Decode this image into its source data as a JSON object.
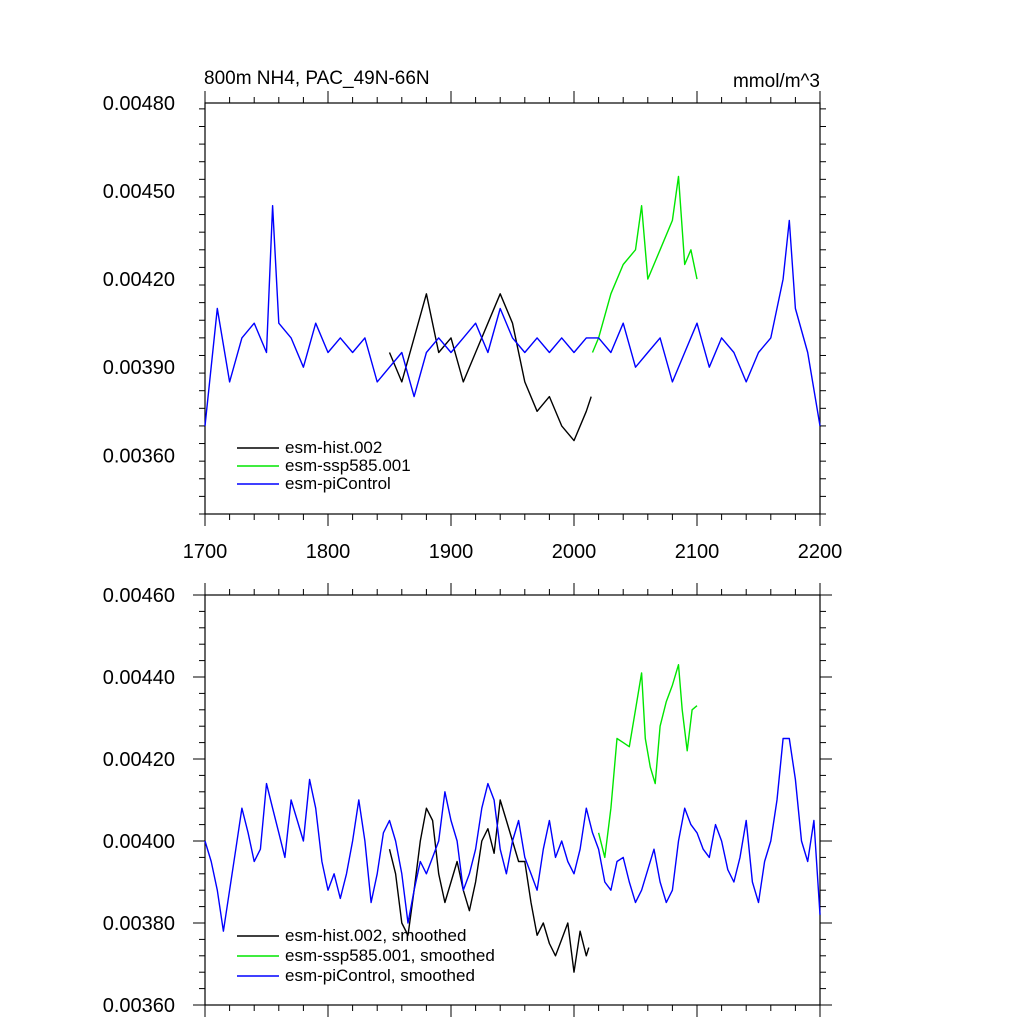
{
  "chart_data": [
    {
      "type": "line",
      "title": "800m NH4, PAC_49N-66N",
      "units": "mmol/m^3",
      "xlim": [
        1700,
        2200
      ],
      "ylim": [
        0.0034,
        0.0048
      ],
      "x_ticks": [
        "1700",
        "1800",
        "1900",
        "2000",
        "2100",
        "2200"
      ],
      "y_ticks": [
        "0.00360",
        "0.00390",
        "0.00420",
        "0.00450",
        "0.00480"
      ],
      "series": [
        {
          "name": "esm-hist.002",
          "color": "#000000",
          "x": [
            1850,
            1860,
            1870,
            1880,
            1890,
            1900,
            1910,
            1920,
            1930,
            1940,
            1950,
            1960,
            1970,
            1980,
            1990,
            2000,
            2010,
            2014
          ],
          "y": [
            0.00395,
            0.00385,
            0.004,
            0.00415,
            0.00395,
            0.004,
            0.00385,
            0.00395,
            0.00405,
            0.00415,
            0.00405,
            0.00385,
            0.00375,
            0.0038,
            0.0037,
            0.00365,
            0.00375,
            0.0038
          ]
        },
        {
          "name": "esm-ssp585.001",
          "color": "#00e600",
          "x": [
            2015,
            2020,
            2030,
            2040,
            2050,
            2055,
            2060,
            2070,
            2080,
            2085,
            2090,
            2095,
            2100
          ],
          "y": [
            0.00395,
            0.004,
            0.00415,
            0.00425,
            0.0043,
            0.00445,
            0.0042,
            0.0043,
            0.0044,
            0.00455,
            0.00425,
            0.0043,
            0.0042
          ]
        },
        {
          "name": "esm-piControl",
          "color": "#0000ff",
          "x": [
            1700,
            1710,
            1720,
            1730,
            1740,
            1750,
            1755,
            1760,
            1770,
            1780,
            1790,
            1800,
            1810,
            1820,
            1830,
            1840,
            1850,
            1860,
            1870,
            1880,
            1890,
            1900,
            1910,
            1920,
            1930,
            1940,
            1950,
            1960,
            1970,
            1980,
            1990,
            2000,
            2010,
            2020,
            2030,
            2040,
            2050,
            2060,
            2070,
            2080,
            2090,
            2100,
            2110,
            2120,
            2130,
            2140,
            2150,
            2160,
            2170,
            2175,
            2180,
            2190,
            2200
          ],
          "y": [
            0.0037,
            0.0041,
            0.00385,
            0.004,
            0.00405,
            0.00395,
            0.00445,
            0.00405,
            0.004,
            0.0039,
            0.00405,
            0.00395,
            0.004,
            0.00395,
            0.004,
            0.00385,
            0.0039,
            0.00395,
            0.0038,
            0.00395,
            0.004,
            0.00395,
            0.004,
            0.00405,
            0.00395,
            0.0041,
            0.004,
            0.00395,
            0.004,
            0.00395,
            0.004,
            0.00395,
            0.004,
            0.004,
            0.00395,
            0.00405,
            0.0039,
            0.00395,
            0.004,
            0.00385,
            0.00395,
            0.00405,
            0.0039,
            0.004,
            0.00395,
            0.00385,
            0.00395,
            0.004,
            0.0042,
            0.0044,
            0.0041,
            0.00395,
            0.0037
          ]
        }
      ]
    },
    {
      "type": "line",
      "title": "",
      "xlim": [
        1700,
        2200
      ],
      "ylim": [
        0.0036,
        0.0046
      ],
      "y_ticks": [
        "0.00360",
        "0.00380",
        "0.00400",
        "0.00420",
        "0.00440",
        "0.00460"
      ],
      "series": [
        {
          "name": "esm-hist.002, smoothed",
          "color": "#000000",
          "x": [
            1850,
            1855,
            1860,
            1865,
            1870,
            1875,
            1880,
            1885,
            1890,
            1895,
            1900,
            1905,
            1910,
            1915,
            1920,
            1925,
            1930,
            1935,
            1940,
            1945,
            1950,
            1955,
            1960,
            1965,
            1970,
            1975,
            1980,
            1985,
            1990,
            1995,
            2000,
            2005,
            2010,
            2012
          ],
          "y": [
            0.00398,
            0.00392,
            0.0038,
            0.00377,
            0.00388,
            0.004,
            0.00408,
            0.00405,
            0.00392,
            0.00385,
            0.0039,
            0.00395,
            0.00388,
            0.00383,
            0.0039,
            0.004,
            0.00403,
            0.00397,
            0.0041,
            0.00405,
            0.004,
            0.00395,
            0.00395,
            0.00385,
            0.00377,
            0.0038,
            0.00375,
            0.00372,
            0.00376,
            0.0038,
            0.00368,
            0.00378,
            0.00372,
            0.00374
          ]
        },
        {
          "name": "esm-ssp585.001, smoothed",
          "color": "#00e600",
          "x": [
            2020,
            2025,
            2030,
            2035,
            2040,
            2045,
            2050,
            2055,
            2058,
            2062,
            2066,
            2070,
            2075,
            2080,
            2085,
            2088,
            2092,
            2096,
            2100
          ],
          "y": [
            0.00402,
            0.00396,
            0.00408,
            0.00425,
            0.00424,
            0.00423,
            0.00432,
            0.00441,
            0.00425,
            0.00418,
            0.00414,
            0.00428,
            0.00434,
            0.00438,
            0.00443,
            0.00432,
            0.00422,
            0.00432,
            0.00433
          ]
        },
        {
          "name": "esm-piControl, smoothed",
          "color": "#0000ff",
          "x": [
            1700,
            1705,
            1710,
            1715,
            1720,
            1725,
            1730,
            1735,
            1740,
            1745,
            1750,
            1755,
            1760,
            1765,
            1770,
            1775,
            1780,
            1785,
            1790,
            1795,
            1800,
            1805,
            1810,
            1815,
            1820,
            1825,
            1830,
            1835,
            1840,
            1845,
            1850,
            1855,
            1860,
            1865,
            1870,
            1875,
            1880,
            1885,
            1890,
            1895,
            1900,
            1905,
            1910,
            1915,
            1920,
            1925,
            1930,
            1935,
            1940,
            1945,
            1950,
            1955,
            1960,
            1965,
            1970,
            1975,
            1980,
            1985,
            1990,
            1995,
            2000,
            2005,
            2010,
            2015,
            2020,
            2025,
            2030,
            2035,
            2040,
            2045,
            2050,
            2055,
            2060,
            2065,
            2070,
            2075,
            2080,
            2085,
            2090,
            2095,
            2100,
            2105,
            2110,
            2115,
            2120,
            2125,
            2130,
            2135,
            2140,
            2145,
            2150,
            2155,
            2160,
            2165,
            2170,
            2175,
            2180,
            2185,
            2190,
            2195,
            2200
          ],
          "y": [
            0.004,
            0.00395,
            0.00388,
            0.00378,
            0.00388,
            0.00398,
            0.00408,
            0.00402,
            0.00395,
            0.00398,
            0.00414,
            0.00408,
            0.00402,
            0.00396,
            0.0041,
            0.00405,
            0.004,
            0.00415,
            0.00408,
            0.00395,
            0.00388,
            0.00392,
            0.00386,
            0.00392,
            0.004,
            0.0041,
            0.004,
            0.00385,
            0.00392,
            0.00402,
            0.00405,
            0.004,
            0.00392,
            0.0038,
            0.00388,
            0.00395,
            0.00392,
            0.00396,
            0.004,
            0.00412,
            0.00405,
            0.004,
            0.00388,
            0.00392,
            0.00398,
            0.00408,
            0.00414,
            0.0041,
            0.00398,
            0.00392,
            0.004,
            0.00405,
            0.00396,
            0.00392,
            0.00388,
            0.00398,
            0.00405,
            0.00396,
            0.004,
            0.00395,
            0.00392,
            0.00398,
            0.00408,
            0.00402,
            0.00398,
            0.0039,
            0.00388,
            0.00395,
            0.00396,
            0.0039,
            0.00385,
            0.00388,
            0.00393,
            0.00398,
            0.0039,
            0.00385,
            0.00388,
            0.004,
            0.00408,
            0.00404,
            0.00402,
            0.00398,
            0.00396,
            0.00404,
            0.004,
            0.00393,
            0.0039,
            0.00396,
            0.00405,
            0.0039,
            0.00385,
            0.00395,
            0.004,
            0.0041,
            0.00425,
            0.00425,
            0.00415,
            0.004,
            0.00395,
            0.00405,
            0.00382
          ]
        }
      ]
    }
  ]
}
